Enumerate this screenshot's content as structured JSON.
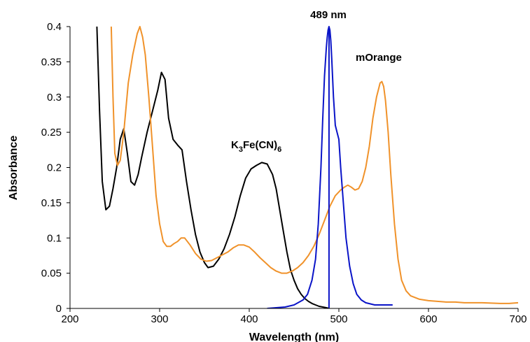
{
  "chart_data": {
    "type": "line",
    "title": "",
    "xlabel": "Wavelength (nm)",
    "ylabel": "Absorbance",
    "xlim": [
      200,
      700
    ],
    "ylim": [
      0,
      0.4
    ],
    "xticks": [
      "200",
      "300",
      "400",
      "500",
      "600",
      "700"
    ],
    "yticks": [
      "0",
      "0.05",
      "0.1",
      "0.15",
      "0.2",
      "0.25",
      "0.3",
      "0.35",
      "0.4"
    ],
    "grid": false,
    "annotations": {
      "laser": "489 nm",
      "morange": "mOrange",
      "ferri_prefix": "K",
      "ferri_sub1": "3",
      "ferri_mid": "Fe(CN)",
      "ferri_sub2": "6"
    },
    "vline_x": 489,
    "series": [
      {
        "color": "#000000",
        "x": [
          230,
          233,
          236,
          240,
          244,
          248,
          252,
          256,
          260,
          264,
          268,
          272,
          276,
          280,
          286,
          292,
          298,
          302,
          306,
          310,
          315,
          320,
          325,
          330,
          335,
          340,
          345,
          350,
          354,
          360,
          366,
          372,
          378,
          384,
          390,
          396,
          402,
          408,
          414,
          420,
          426,
          430,
          434,
          438,
          442,
          446,
          450,
          454,
          458,
          462,
          466,
          470,
          474,
          478,
          482,
          486,
          489
        ],
        "y": [
          0.4,
          0.28,
          0.18,
          0.14,
          0.145,
          0.17,
          0.2,
          0.24,
          0.255,
          0.22,
          0.18,
          0.175,
          0.19,
          0.215,
          0.25,
          0.28,
          0.31,
          0.335,
          0.325,
          0.27,
          0.24,
          0.232,
          0.225,
          0.18,
          0.14,
          0.105,
          0.08,
          0.065,
          0.058,
          0.06,
          0.07,
          0.085,
          0.105,
          0.13,
          0.16,
          0.185,
          0.198,
          0.203,
          0.207,
          0.205,
          0.19,
          0.17,
          0.14,
          0.11,
          0.08,
          0.055,
          0.04,
          0.028,
          0.02,
          0.014,
          0.01,
          0.007,
          0.005,
          0.003,
          0.002,
          0.001,
          0.0
        ]
      },
      {
        "color": "#f0922a",
        "x": [
          246,
          248,
          250,
          253,
          256,
          260,
          265,
          270,
          275,
          278,
          281,
          284,
          288,
          292,
          296,
          300,
          304,
          308,
          312,
          316,
          320,
          324,
          328,
          334,
          340,
          346,
          352,
          358,
          364,
          370,
          376,
          382,
          388,
          394,
          400,
          406,
          412,
          418,
          424,
          430,
          436,
          442,
          448,
          454,
          460,
          466,
          472,
          478,
          484,
          490,
          496,
          502,
          506,
          510,
          514,
          518,
          522,
          526,
          530,
          534,
          538,
          542,
          546,
          548,
          550,
          552,
          555,
          558,
          562,
          566,
          570,
          575,
          580,
          590,
          600,
          610,
          620,
          630,
          640,
          660,
          680,
          690,
          700
        ],
        "y": [
          0.4,
          0.3,
          0.22,
          0.203,
          0.21,
          0.25,
          0.32,
          0.36,
          0.39,
          0.4,
          0.385,
          0.36,
          0.3,
          0.23,
          0.16,
          0.12,
          0.095,
          0.088,
          0.088,
          0.092,
          0.095,
          0.1,
          0.1,
          0.09,
          0.078,
          0.07,
          0.067,
          0.068,
          0.072,
          0.076,
          0.08,
          0.086,
          0.09,
          0.09,
          0.087,
          0.08,
          0.072,
          0.065,
          0.058,
          0.053,
          0.05,
          0.05,
          0.053,
          0.058,
          0.065,
          0.075,
          0.088,
          0.105,
          0.125,
          0.145,
          0.16,
          0.168,
          0.172,
          0.175,
          0.172,
          0.168,
          0.17,
          0.18,
          0.2,
          0.23,
          0.27,
          0.3,
          0.32,
          0.322,
          0.315,
          0.295,
          0.25,
          0.19,
          0.12,
          0.07,
          0.04,
          0.025,
          0.018,
          0.013,
          0.011,
          0.01,
          0.009,
          0.009,
          0.008,
          0.008,
          0.007,
          0.007,
          0.008
        ]
      },
      {
        "color": "#0a14c8",
        "x": [
          420,
          440,
          450,
          460,
          465,
          470,
          474,
          477,
          480,
          482,
          484,
          486,
          487,
          488,
          489,
          490,
          491,
          492,
          494,
          496,
          498,
          500,
          502,
          505,
          508,
          512,
          516,
          520,
          525,
          530,
          540,
          550,
          560
        ],
        "y": [
          0.0,
          0.002,
          0.005,
          0.012,
          0.02,
          0.04,
          0.07,
          0.12,
          0.2,
          0.27,
          0.33,
          0.37,
          0.385,
          0.395,
          0.4,
          0.395,
          0.38,
          0.355,
          0.3,
          0.26,
          0.25,
          0.24,
          0.2,
          0.15,
          0.1,
          0.06,
          0.035,
          0.02,
          0.012,
          0.008,
          0.005,
          0.005,
          0.005
        ]
      }
    ]
  }
}
